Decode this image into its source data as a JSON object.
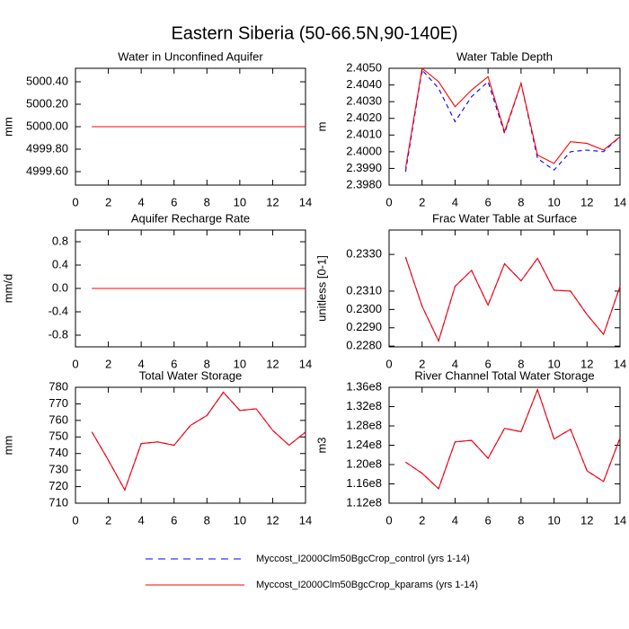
{
  "title": "Eastern Siberia (50-66.5N,90-140E)",
  "legend": [
    {
      "name": "Myccost_I2000Clm50BgcCrop_control (yrs 1-14)",
      "color": "#0000ff",
      "dash": true
    },
    {
      "name": "Myccost_I2000Clm50BgcCrop_kparams (yrs 1-14)",
      "color": "#ff0000",
      "dash": false
    }
  ],
  "chart_data": [
    {
      "type": "line",
      "title": "Water in Unconfined Aquifer",
      "ylabel": "mm",
      "x": [
        1,
        2,
        3,
        4,
        5,
        6,
        7,
        8,
        9,
        10,
        11,
        12,
        13,
        14
      ],
      "xlim": [
        0,
        14
      ],
      "xticks": [
        0,
        2,
        4,
        6,
        8,
        10,
        12,
        14
      ],
      "ylim": [
        4999.48,
        5000.52
      ],
      "yticks": [
        {
          "value": 4999.6,
          "label": "4999.60"
        },
        {
          "value": 4999.8,
          "label": "4999.80"
        },
        {
          "value": 5000,
          "label": "5000.00"
        },
        {
          "value": 5000.2,
          "label": "5000.20"
        },
        {
          "value": 5000.4,
          "label": "5000.40"
        }
      ],
      "series": [
        {
          "values": [
            5000,
            5000,
            5000,
            5000,
            5000,
            5000,
            5000,
            5000,
            5000,
            5000,
            5000,
            5000,
            5000,
            5000
          ]
        },
        {
          "values": [
            5000,
            5000,
            5000,
            5000,
            5000,
            5000,
            5000,
            5000,
            5000,
            5000,
            5000,
            5000,
            5000,
            5000
          ]
        }
      ]
    },
    {
      "type": "line",
      "title": "Water Table Depth",
      "ylabel": "m",
      "x": [
        1,
        2,
        3,
        4,
        5,
        6,
        7,
        8,
        9,
        10,
        11,
        12,
        13,
        14
      ],
      "xlim": [
        0,
        14
      ],
      "xticks": [
        0,
        2,
        4,
        6,
        8,
        10,
        12,
        14
      ],
      "ylim": [
        2.398,
        2.405
      ],
      "yticks": [
        {
          "value": 2.398,
          "label": "2.3980"
        },
        {
          "value": 2.399,
          "label": "2.3990"
        },
        {
          "value": 2.4,
          "label": "2.4000"
        },
        {
          "value": 2.401,
          "label": "2.4010"
        },
        {
          "value": 2.402,
          "label": "2.4020"
        },
        {
          "value": 2.403,
          "label": "2.4030"
        },
        {
          "value": 2.404,
          "label": "2.4040"
        },
        {
          "value": 2.405,
          "label": "2.4050"
        }
      ],
      "series": [
        {
          "values": [
            2.3988,
            2.4049,
            2.4038,
            2.4018,
            2.4033,
            2.4042,
            2.4011,
            2.4041,
            2.3996,
            2.3989,
            2.4,
            2.4001,
            2.4,
            2.4009
          ]
        },
        {
          "values": [
            2.399,
            2.405,
            2.4042,
            2.4027,
            2.4037,
            2.4045,
            2.4012,
            2.4041,
            2.3998,
            2.3993,
            2.4006,
            2.4005,
            2.4001,
            2.4009
          ]
        }
      ]
    },
    {
      "type": "line",
      "title": "Aquifer Recharge Rate",
      "ylabel": "mm/d",
      "x": [
        1,
        2,
        3,
        4,
        5,
        6,
        7,
        8,
        9,
        10,
        11,
        12,
        13,
        14
      ],
      "xlim": [
        0,
        14
      ],
      "xticks": [
        0,
        2,
        4,
        6,
        8,
        10,
        12,
        14
      ],
      "ylim": [
        -1,
        1
      ],
      "yticks": [
        {
          "value": -0.8,
          "label": "-0.8"
        },
        {
          "value": -0.4,
          "label": "-0.4"
        },
        {
          "value": 0,
          "label": "0.0"
        },
        0.4,
        0.8
      ],
      "series": [
        {
          "values": [
            0,
            0,
            0,
            0,
            0,
            0,
            0,
            0,
            0,
            0,
            0,
            0,
            0,
            0
          ]
        },
        {
          "values": [
            0,
            0,
            0,
            0,
            0,
            0,
            0,
            0,
            0,
            0,
            0,
            0,
            0,
            0
          ]
        }
      ]
    },
    {
      "type": "line",
      "title": "Frac Water Table at Surface",
      "ylabel": "unitless [0-1]",
      "x": [
        1,
        2,
        3,
        4,
        5,
        6,
        7,
        8,
        9,
        10,
        11,
        12,
        13,
        14
      ],
      "xlim": [
        0,
        14
      ],
      "xticks": [
        0,
        2,
        4,
        6,
        8,
        10,
        12,
        14
      ],
      "ylim": [
        0.22796,
        0.23433
      ],
      "yticks": [
        {
          "value": 0.228,
          "label": "0.2280"
        },
        {
          "value": 0.229,
          "label": "0.2290"
        },
        {
          "value": 0.23,
          "label": "0.2300"
        },
        {
          "value": 0.231,
          "label": "0.2310"
        },
        {
          "value": 0.233,
          "label": "0.2330"
        }
      ],
      "series": [
        {
          "values": [
            0.23285,
            0.23018,
            0.22828,
            0.23126,
            0.23213,
            0.23023,
            0.23249,
            0.23156,
            0.23279,
            0.23105,
            0.231,
            0.22972,
            0.22864,
            0.23126
          ]
        },
        {
          "values": [
            0.23285,
            0.23018,
            0.22828,
            0.23126,
            0.23213,
            0.23023,
            0.23249,
            0.23156,
            0.23279,
            0.23105,
            0.231,
            0.22972,
            0.22864,
            0.23126
          ]
        }
      ]
    },
    {
      "type": "line",
      "title": "Total Water Storage",
      "ylabel": "mm",
      "x": [
        1,
        2,
        3,
        4,
        5,
        6,
        7,
        8,
        9,
        10,
        11,
        12,
        13,
        14
      ],
      "xlim": [
        0,
        14
      ],
      "xticks": [
        0,
        2,
        4,
        6,
        8,
        10,
        12,
        14
      ],
      "ylim": [
        710,
        780
      ],
      "yticks": [
        710,
        720,
        730,
        740,
        750,
        760,
        770,
        780
      ],
      "series": [
        {
          "values": [
            753,
            736,
            718,
            746,
            747,
            745,
            757,
            763,
            777,
            766,
            767,
            754,
            745,
            753
          ]
        },
        {
          "values": [
            753,
            736,
            718,
            746,
            747,
            745,
            757,
            763,
            777,
            766,
            767,
            754,
            745,
            753
          ]
        }
      ]
    },
    {
      "type": "line",
      "title": "River Channel Total Water Storage",
      "ylabel": "m3",
      "x": [
        1,
        2,
        3,
        4,
        5,
        6,
        7,
        8,
        9,
        10,
        11,
        12,
        13,
        14
      ],
      "xlim": [
        0,
        14
      ],
      "xticks": [
        0,
        2,
        4,
        6,
        8,
        10,
        12,
        14
      ],
      "ylim": [
        112000000,
        136000000
      ],
      "yticks": [
        {
          "value": 112000000,
          "label": "1.12e8"
        },
        {
          "value": 116000000,
          "label": "1.16e8"
        },
        {
          "value": 120000000,
          "label": "1.20e8"
        },
        {
          "value": 124000000,
          "label": "1.24e8"
        },
        {
          "value": 128000000,
          "label": "1.28e8"
        },
        {
          "value": 132000000,
          "label": "1.32e8"
        },
        {
          "value": 136000000,
          "label": "1.36e8"
        }
      ],
      "series": [
        {
          "values": [
            120500000,
            118200000,
            115000000,
            124700000,
            125000000,
            121300000,
            127500000,
            126800000,
            135500000,
            125300000,
            127300000,
            118700000,
            116500000,
            125500000
          ]
        },
        {
          "values": [
            120500000,
            118200000,
            115000000,
            124700000,
            125000000,
            121300000,
            127500000,
            126800000,
            135500000,
            125300000,
            127300000,
            118700000,
            116500000,
            125500000
          ]
        }
      ]
    }
  ]
}
